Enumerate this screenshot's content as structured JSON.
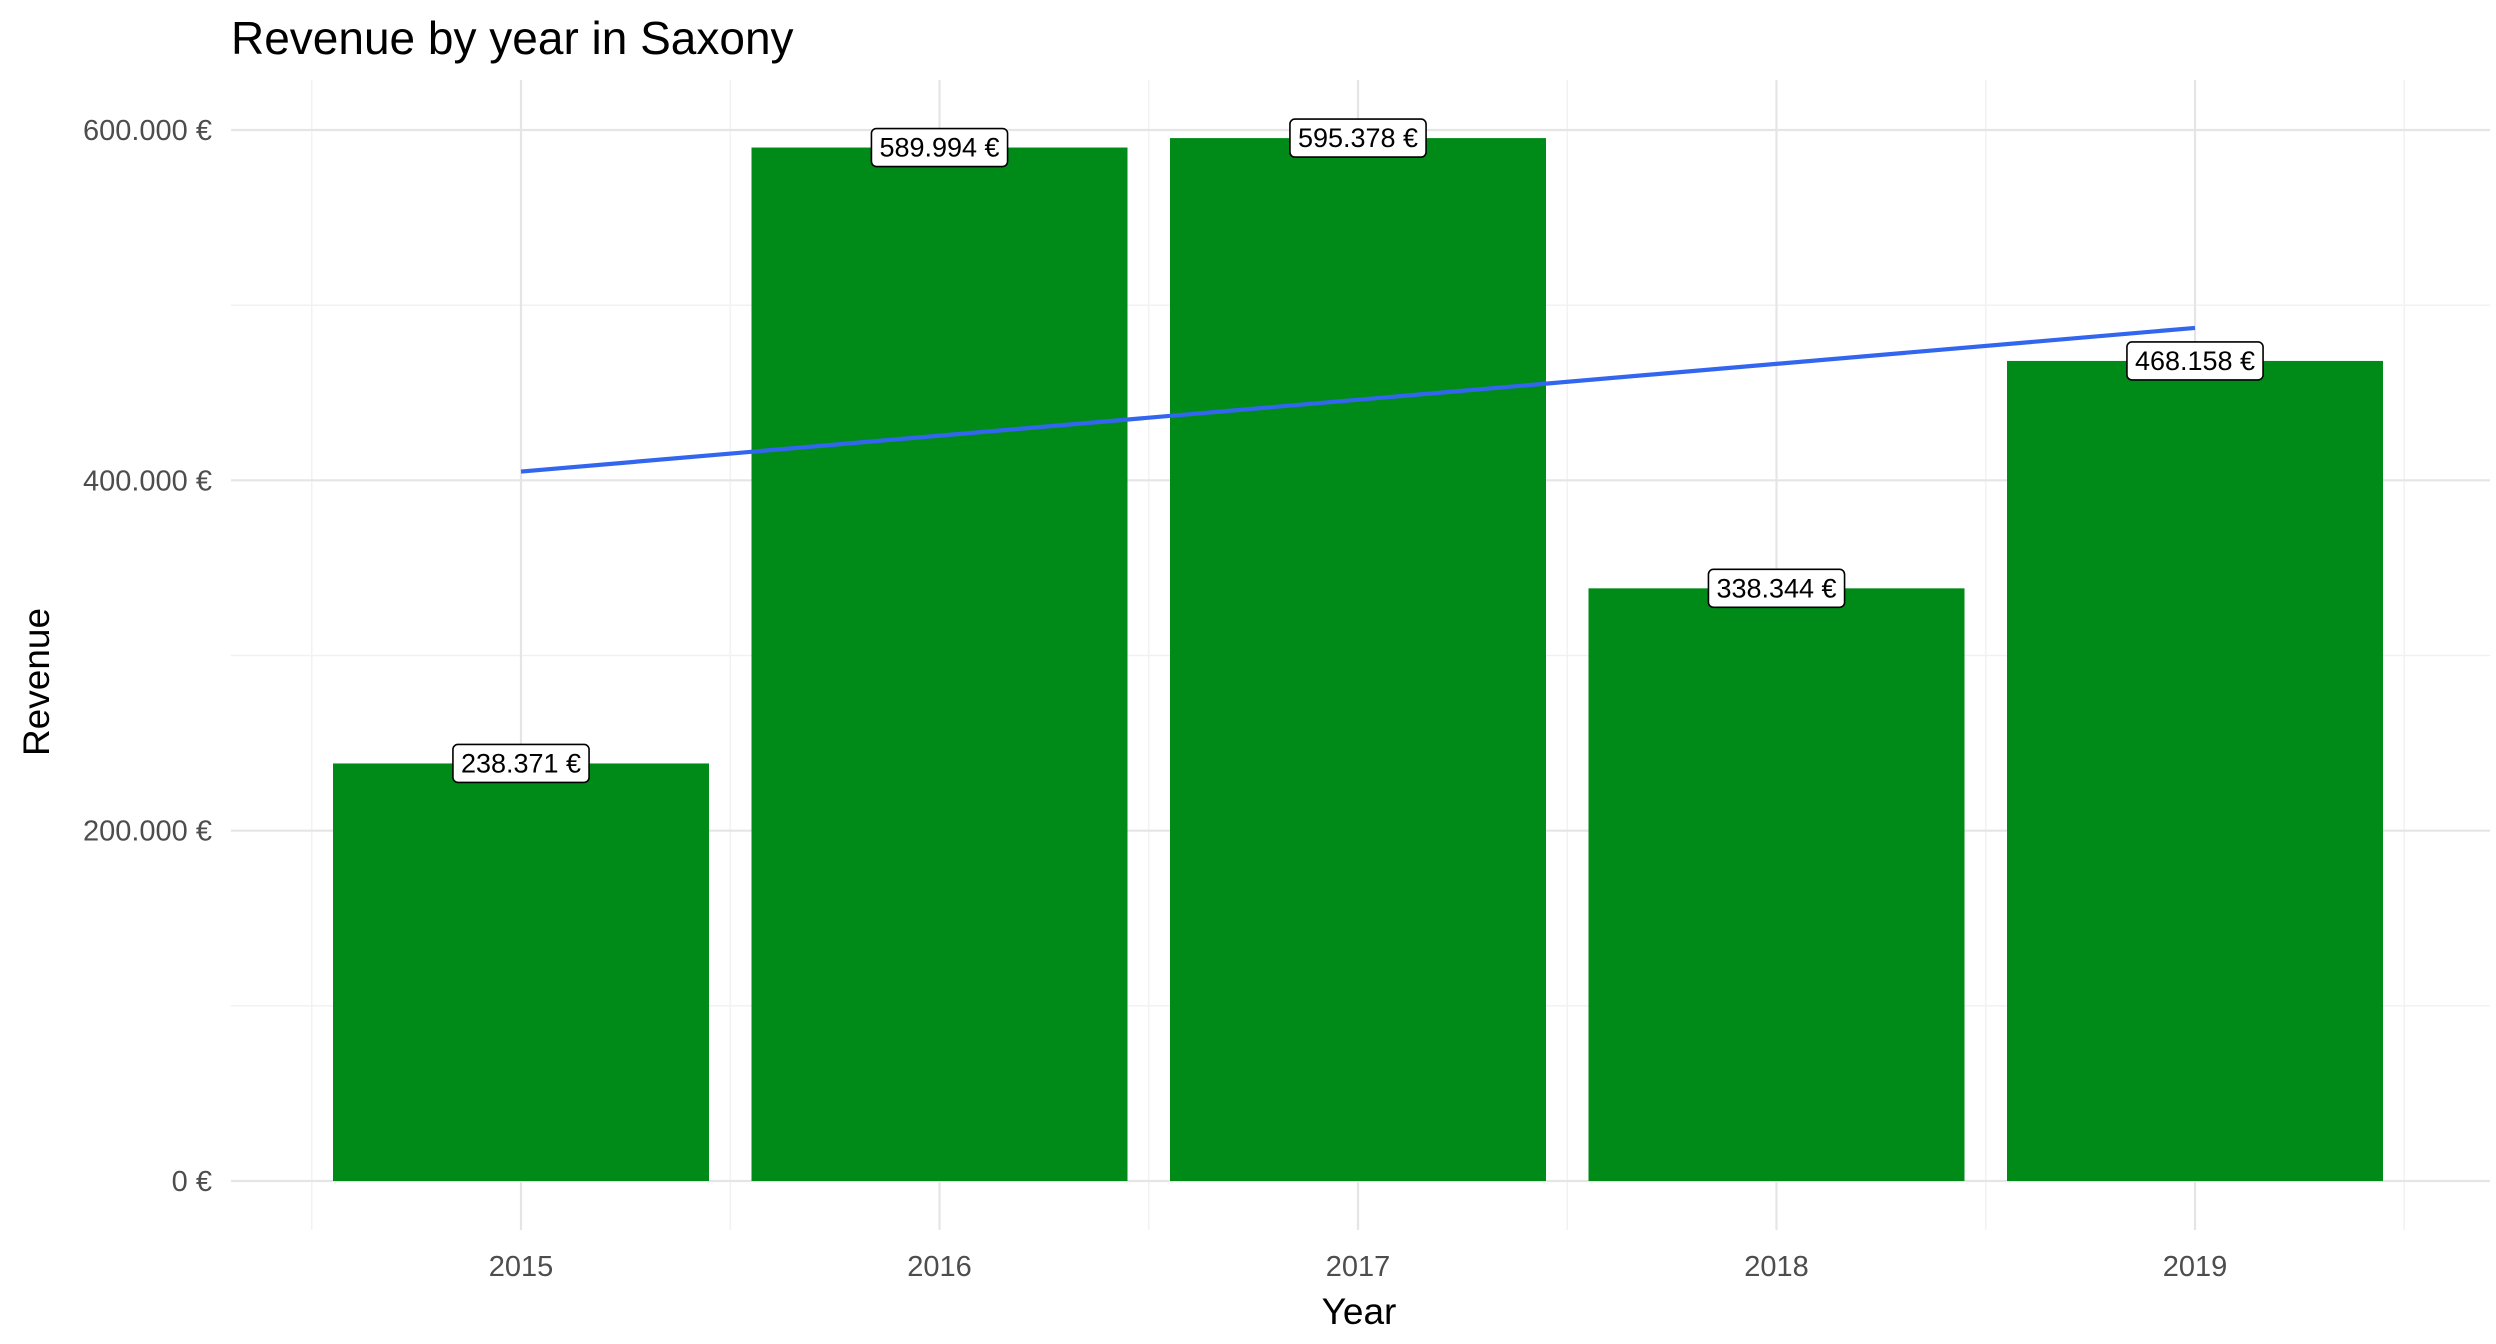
{
  "chart_data": {
    "type": "bar",
    "title": "Revenue by year in Saxony",
    "xlabel": "Year",
    "ylabel": "Revenue",
    "categories": [
      "2015",
      "2016",
      "2017",
      "2018",
      "2019"
    ],
    "values": [
      238371,
      589994,
      595378,
      338344,
      468158
    ],
    "data_labels": [
      "238.371 €",
      "589.994 €",
      "595.378 €",
      "338.344 €",
      "468.158 €"
    ],
    "ylim": [
      -30000,
      605000
    ],
    "y_ticks": [
      0,
      200000,
      400000,
      600000
    ],
    "y_tick_labels": [
      "0 €",
      "200.000 €",
      "400.000 €",
      "600.000 €"
    ],
    "trend_line": {
      "type": "linear",
      "x": [
        "2015",
        "2019"
      ],
      "y": [
        405000,
        487000
      ]
    },
    "grid": true,
    "legend": "none",
    "colors": {
      "bar": "#008b19",
      "trend": "#3366ee",
      "background": "#ffffff"
    }
  }
}
